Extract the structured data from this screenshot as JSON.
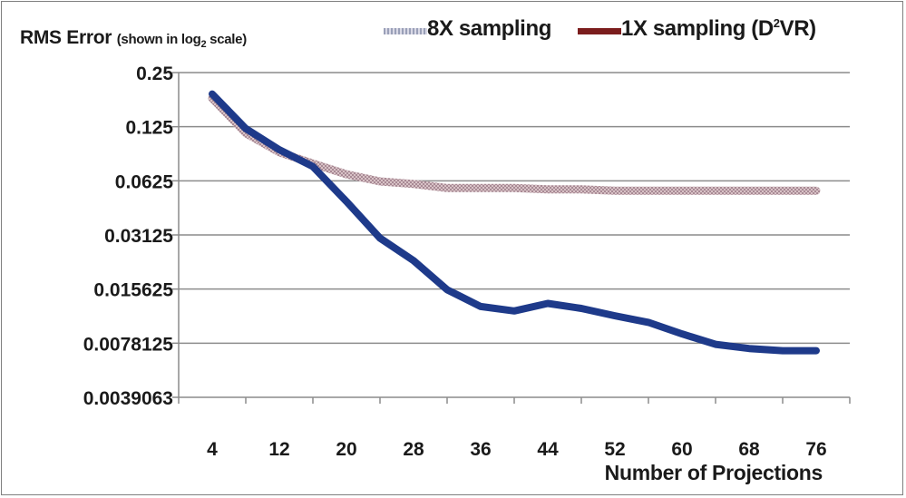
{
  "chart_data": {
    "type": "line",
    "title": "RMS Error",
    "title_note": "(shown in log",
    "title_note_sub": "2",
    "title_note_end": " scale)",
    "xlabel": "Number of Projections",
    "y_scale": "log2",
    "ylim": [
      0.0039063,
      0.25
    ],
    "y_ticks": [
      "0.25",
      "0.125",
      "0.0625",
      "0.03125",
      "0.015625",
      "0.0078125",
      "0.0039063"
    ],
    "y_tick_values": [
      0.25,
      0.125,
      0.0625,
      0.03125,
      0.015625,
      0.0078125,
      0.0039063
    ],
    "x_ticks": [
      "4",
      "12",
      "20",
      "28",
      "36",
      "44",
      "52",
      "60",
      "68",
      "76"
    ],
    "x_tick_values": [
      4,
      12,
      20,
      28,
      36,
      44,
      52,
      60,
      68,
      76
    ],
    "x": [
      4,
      8,
      12,
      16,
      20,
      24,
      28,
      32,
      36,
      40,
      44,
      48,
      52,
      56,
      60,
      64,
      68,
      72,
      76
    ],
    "grid": true,
    "legend_position": "top-right",
    "series": [
      {
        "name": "8X sampling",
        "color": "#c9a9b0",
        "style": "textured",
        "values": [
          0.18,
          0.115,
          0.09,
          0.078,
          0.068,
          0.062,
          0.06,
          0.057,
          0.057,
          0.057,
          0.056,
          0.056,
          0.055,
          0.055,
          0.055,
          0.055,
          0.055,
          0.055,
          0.055
        ]
      },
      {
        "name": "1X sampling (D",
        "name_sup": "2",
        "name_end": "VR)",
        "color": "#1e3a8a",
        "legend_color": "#7b1d1d",
        "values": [
          0.19,
          0.122,
          0.093,
          0.075,
          0.048,
          0.03,
          0.0225,
          0.0155,
          0.0125,
          0.0118,
          0.013,
          0.0122,
          0.0111,
          0.0102,
          0.0088,
          0.0077,
          0.0073,
          0.0071,
          0.0071
        ]
      }
    ]
  }
}
